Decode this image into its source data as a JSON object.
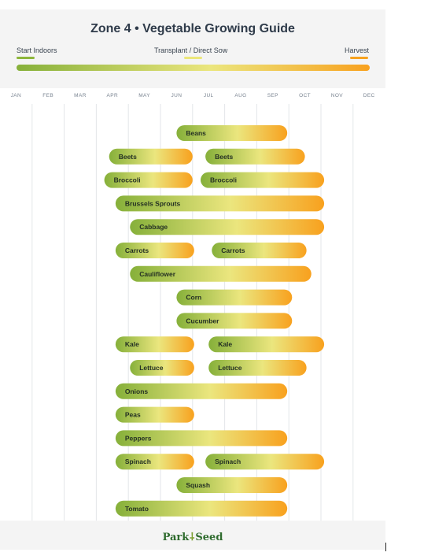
{
  "title": "Zone 4  •  Vegetable Growing Guide",
  "legend": [
    {
      "label": "Start Indoors",
      "color": "#8db63a"
    },
    {
      "label": "Transplant / Direct Sow",
      "color": "#ece77a"
    },
    {
      "label": "Harvest",
      "color": "#f7a21f"
    }
  ],
  "colors": {
    "start": "#86b03a",
    "mid": "#ebe67e",
    "end": "#f8a11e",
    "grid": "#e3e6e9"
  },
  "footer": {
    "brand_left": "Park",
    "brand_right": "Seed",
    "brand_icon": "sprout-icon"
  },
  "chart_data": {
    "type": "gantt",
    "months": [
      "JAN",
      "FEB",
      "MAR",
      "APR",
      "MAY",
      "JUN",
      "JUL",
      "AUG",
      "SEP",
      "OCT",
      "NOV",
      "DEC"
    ],
    "bars": [
      {
        "label": "Beans",
        "start": 5.5,
        "end": 8.95
      },
      {
        "label": "Beets",
        "start": 3.4,
        "end": 6.0
      },
      {
        "label": "Beets",
        "start": 6.4,
        "end": 9.5
      },
      {
        "label": "Broccoli",
        "start": 3.25,
        "end": 6.0
      },
      {
        "label": "Broccoli",
        "start": 6.25,
        "end": 10.1
      },
      {
        "label": "Brussels Sprouts",
        "start": 3.6,
        "end": 10.1
      },
      {
        "label": "Cabbage",
        "start": 4.05,
        "end": 10.1
      },
      {
        "label": "Carrots",
        "start": 3.6,
        "end": 6.05
      },
      {
        "label": "Carrots",
        "start": 6.6,
        "end": 9.55
      },
      {
        "label": "Cauliflower",
        "start": 4.05,
        "end": 9.7
      },
      {
        "label": "Corn",
        "start": 5.5,
        "end": 9.1
      },
      {
        "label": "Cucumber",
        "start": 5.5,
        "end": 9.1
      },
      {
        "label": "Kale",
        "start": 3.6,
        "end": 6.05
      },
      {
        "label": "Kale",
        "start": 6.5,
        "end": 10.1
      },
      {
        "label": "Lettuce",
        "start": 4.05,
        "end": 6.05
      },
      {
        "label": "Lettuce",
        "start": 6.5,
        "end": 9.55
      },
      {
        "label": "Onions",
        "start": 3.6,
        "end": 8.95
      },
      {
        "label": "Peas",
        "start": 3.6,
        "end": 6.05
      },
      {
        "label": "Peppers",
        "start": 3.6,
        "end": 8.95
      },
      {
        "label": "Spinach",
        "start": 3.6,
        "end": 6.05
      },
      {
        "label": "Spinach",
        "start": 6.4,
        "end": 10.1
      },
      {
        "label": "Squash",
        "start": 5.5,
        "end": 8.95
      },
      {
        "label": "Tomato",
        "start": 3.6,
        "end": 8.95
      }
    ],
    "rows": [
      [
        0
      ],
      [
        1,
        2
      ],
      [
        3,
        4
      ],
      [
        5
      ],
      [
        6
      ],
      [
        7,
        8
      ],
      [
        9
      ],
      [
        10
      ],
      [
        11
      ],
      [
        12,
        13
      ],
      [
        14,
        15
      ],
      [
        16
      ],
      [
        17
      ],
      [
        18
      ],
      [
        19,
        20
      ],
      [
        21
      ],
      [
        22
      ]
    ]
  }
}
